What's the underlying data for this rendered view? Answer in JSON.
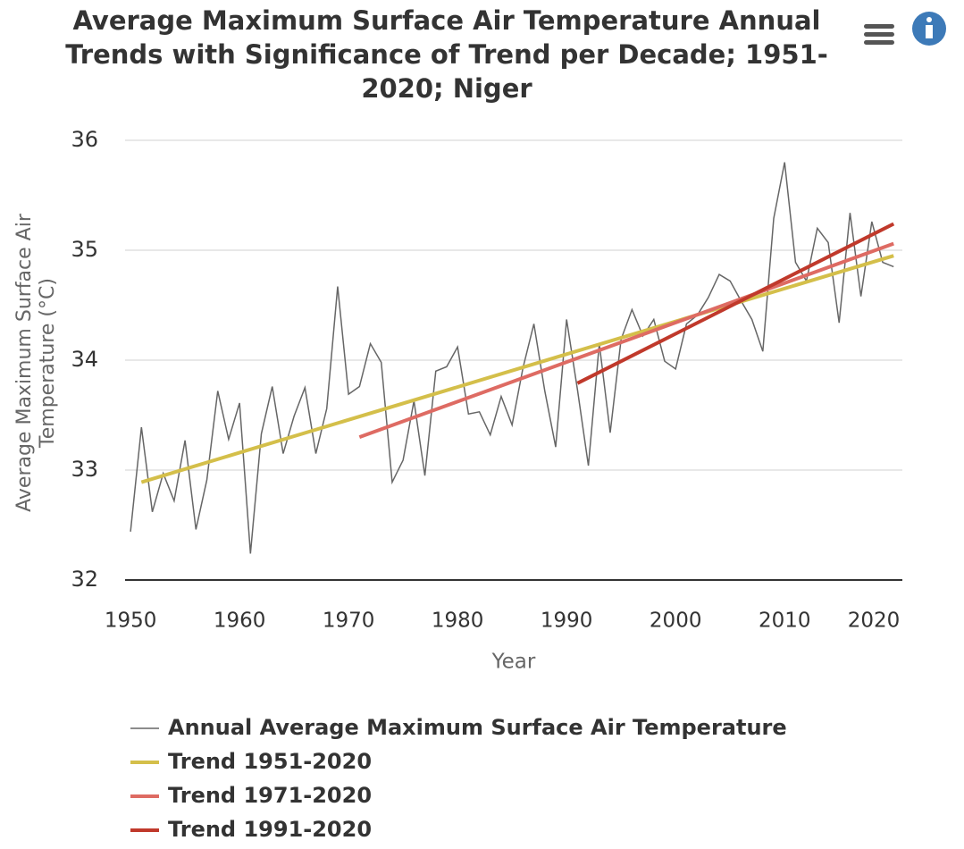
{
  "chart_data": {
    "type": "line",
    "title": "Average Maximum Surface Air Temperature Annual Trends with Significance of Trend per Decade; 1951-2020; Niger",
    "x_label": "Year",
    "y_label": "Average Maximum Surface Air Temperature (°C)",
    "xlim": [
      1949.5,
      2020.8
    ],
    "xticks": [
      1950,
      1960,
      1970,
      1980,
      1990,
      2000,
      2010,
      2020
    ],
    "ylim": [
      32,
      36
    ],
    "yticks": [
      32,
      33,
      34,
      35,
      36
    ],
    "grid": true,
    "legend": "bottom",
    "series": [
      {
        "name": "Annual Average Maximum Surface Air Temperature",
        "color": "#666666",
        "x": [
          1950,
          1951,
          1952,
          1953,
          1954,
          1955,
          1956,
          1957,
          1958,
          1959,
          1960,
          1961,
          1962,
          1963,
          1964,
          1965,
          1966,
          1967,
          1968,
          1969,
          1970,
          1971,
          1972,
          1973,
          1974,
          1975,
          1976,
          1977,
          1978,
          1979,
          1980,
          1981,
          1982,
          1983,
          1984,
          1985,
          1986,
          1987,
          1988,
          1989,
          1990,
          1991,
          1992,
          1993,
          1994,
          1995,
          1996,
          1997,
          1998,
          1999,
          2000,
          2001,
          2002,
          2003,
          2004,
          2005,
          2006,
          2007,
          2008,
          2009,
          2010,
          2011,
          2012,
          2013,
          2014,
          2015,
          2016,
          2017,
          2018,
          2019,
          2020
        ],
        "values": [
          32.44,
          33.39,
          32.62,
          32.97,
          32.72,
          33.27,
          32.46,
          32.91,
          33.72,
          33.28,
          33.61,
          32.24,
          33.33,
          33.76,
          33.15,
          33.49,
          33.75,
          33.15,
          33.56,
          34.67,
          33.69,
          33.76,
          34.15,
          33.98,
          32.89,
          33.09,
          33.63,
          32.95,
          33.9,
          33.94,
          34.12,
          33.51,
          33.53,
          33.32,
          33.67,
          33.41,
          33.93,
          34.33,
          33.72,
          33.21,
          34.37,
          33.73,
          33.04,
          34.15,
          33.34,
          34.19,
          34.46,
          34.22,
          34.37,
          33.99,
          33.92,
          34.33,
          34.41,
          34.57,
          34.78,
          34.72,
          34.54,
          34.37,
          34.08,
          35.29,
          35.8,
          34.89,
          34.72,
          35.2,
          35.07,
          34.34,
          35.34,
          34.58,
          35.26,
          34.89,
          34.85
        ]
      },
      {
        "name": "Trend 1951-2020",
        "color": "#d4bf4a",
        "x": [
          1951,
          2020
        ],
        "values": [
          32.89,
          34.95
        ]
      },
      {
        "name": "Trend 1971-2020",
        "color": "#de6b63",
        "x": [
          1971,
          2020
        ],
        "values": [
          33.3,
          35.06
        ]
      },
      {
        "name": "Trend 1991-2020",
        "color": "#c0392b",
        "x": [
          1991,
          2020
        ],
        "values": [
          33.79,
          35.24
        ]
      }
    ]
  }
}
